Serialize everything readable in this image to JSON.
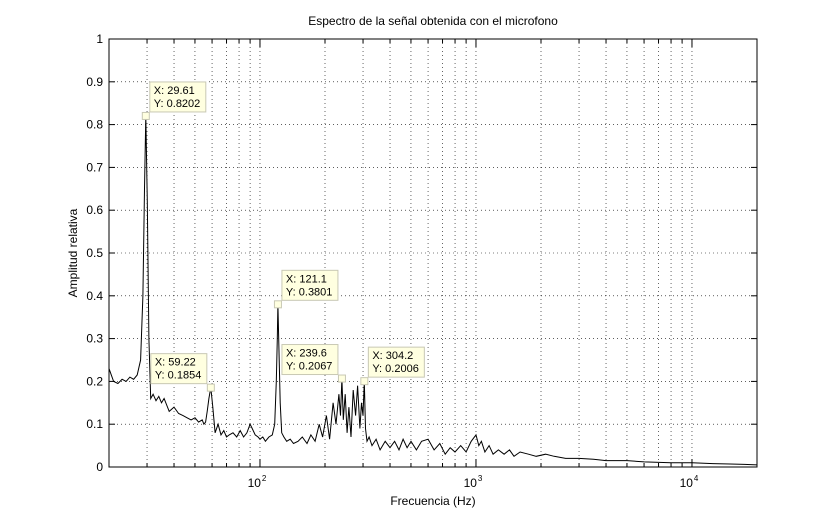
{
  "chart_data": {
    "type": "line",
    "title": "Espectro de la señal obtenida con el microfono",
    "xlabel": "Frecuencia (Hz)",
    "ylabel": "Amplitud relativa",
    "xscale": "log",
    "xlim": [
      20,
      20000
    ],
    "ylim": [
      0,
      1
    ],
    "grid": "on",
    "line_color": "#000000",
    "x_ticks": [
      {
        "base": "10",
        "exp": "2",
        "value": 100
      },
      {
        "base": "10",
        "exp": "3",
        "value": 1000
      },
      {
        "base": "10",
        "exp": "4",
        "value": 10000
      }
    ],
    "y_ticks": [
      "0",
      "0.1",
      "0.2",
      "0.3",
      "0.4",
      "0.5",
      "0.6",
      "0.7",
      "0.8",
      "0.9",
      "1"
    ],
    "datatips": [
      {
        "x": 29.61,
        "y": 0.8202,
        "x_text": "X: 29.61",
        "y_text": "Y: 0.8202",
        "position": "upper-right"
      },
      {
        "x": 59.22,
        "y": 0.1854,
        "x_text": "X: 59.22",
        "y_text": "Y: 0.1854",
        "position": "upper-left"
      },
      {
        "x": 121.1,
        "y": 0.3801,
        "x_text": "X: 121.1",
        "y_text": "Y: 0.3801",
        "position": "upper-right"
      },
      {
        "x": 239.6,
        "y": 0.2067,
        "x_text": "X: 239.6",
        "y_text": "Y: 0.2067",
        "position": "upper-left"
      },
      {
        "x": 304.2,
        "y": 0.2006,
        "x_text": "X: 304.2",
        "y_text": "Y: 0.2006",
        "position": "upper-right"
      }
    ],
    "series": [
      {
        "x": [
          20,
          21,
          22,
          23,
          24,
          25,
          26,
          27,
          28,
          28.7,
          29.2,
          29.61,
          30.1,
          30.6,
          31.2,
          32,
          33,
          34,
          35,
          36,
          38,
          40,
          42,
          44,
          46,
          48,
          50,
          52,
          54,
          55,
          56,
          57,
          58,
          59.22,
          60.5,
          62,
          64,
          66,
          68,
          70,
          72,
          75,
          78,
          81,
          84,
          87,
          90,
          92,
          95,
          98,
          100,
          103,
          106,
          110,
          114,
          117,
          119,
          120.3,
          121.1,
          122.3,
          124,
          126,
          129,
          133,
          138,
          143,
          150,
          157,
          165,
          172,
          180,
          188,
          195,
          203,
          210,
          218,
          225,
          232,
          236,
          239.6,
          243,
          248,
          253,
          258,
          264,
          270,
          277,
          283,
          290,
          295,
          300,
          304.2,
          308,
          313,
          320,
          330,
          345,
          360,
          380,
          400,
          420,
          440,
          460,
          480,
          500,
          530,
          560,
          600,
          640,
          680,
          720,
          760,
          800,
          850,
          900,
          950,
          1000,
          1030,
          1060,
          1100,
          1150,
          1200,
          1270,
          1350,
          1430,
          1500,
          1600,
          1750,
          1900,
          2100,
          2300,
          2600,
          3000,
          3500,
          4000,
          5000,
          6000,
          8000,
          10000,
          12500,
          15000,
          17500,
          20000
        ],
        "y": [
          0.23,
          0.2,
          0.195,
          0.205,
          0.2,
          0.21,
          0.205,
          0.215,
          0.25,
          0.4,
          0.65,
          0.8202,
          0.62,
          0.3,
          0.16,
          0.17,
          0.155,
          0.165,
          0.15,
          0.16,
          0.13,
          0.14,
          0.125,
          0.12,
          0.115,
          0.11,
          0.115,
          0.105,
          0.11,
          0.1,
          0.105,
          0.13,
          0.16,
          0.1854,
          0.14,
          0.08,
          0.1,
          0.075,
          0.085,
          0.07,
          0.075,
          0.08,
          0.07,
          0.085,
          0.07,
          0.08,
          0.1,
          0.09,
          0.075,
          0.07,
          0.065,
          0.07,
          0.06,
          0.07,
          0.075,
          0.1,
          0.2,
          0.3,
          0.3801,
          0.28,
          0.15,
          0.08,
          0.07,
          0.06,
          0.065,
          0.055,
          0.06,
          0.07,
          0.055,
          0.075,
          0.06,
          0.1,
          0.07,
          0.12,
          0.065,
          0.15,
          0.1,
          0.17,
          0.12,
          0.2067,
          0.11,
          0.17,
          0.08,
          0.14,
          0.07,
          0.18,
          0.12,
          0.19,
          0.09,
          0.15,
          0.12,
          0.2006,
          0.09,
          0.06,
          0.07,
          0.05,
          0.065,
          0.04,
          0.06,
          0.045,
          0.06,
          0.04,
          0.065,
          0.045,
          0.06,
          0.04,
          0.06,
          0.065,
          0.04,
          0.055,
          0.03,
          0.045,
          0.035,
          0.05,
          0.035,
          0.06,
          0.075,
          0.05,
          0.06,
          0.035,
          0.05,
          0.03,
          0.04,
          0.03,
          0.04,
          0.025,
          0.035,
          0.03,
          0.025,
          0.03,
          0.025,
          0.02,
          0.02,
          0.018,
          0.015,
          0.015,
          0.012,
          0.01,
          0.01,
          0.008,
          0.007,
          0.006,
          0.005
        ]
      }
    ]
  }
}
